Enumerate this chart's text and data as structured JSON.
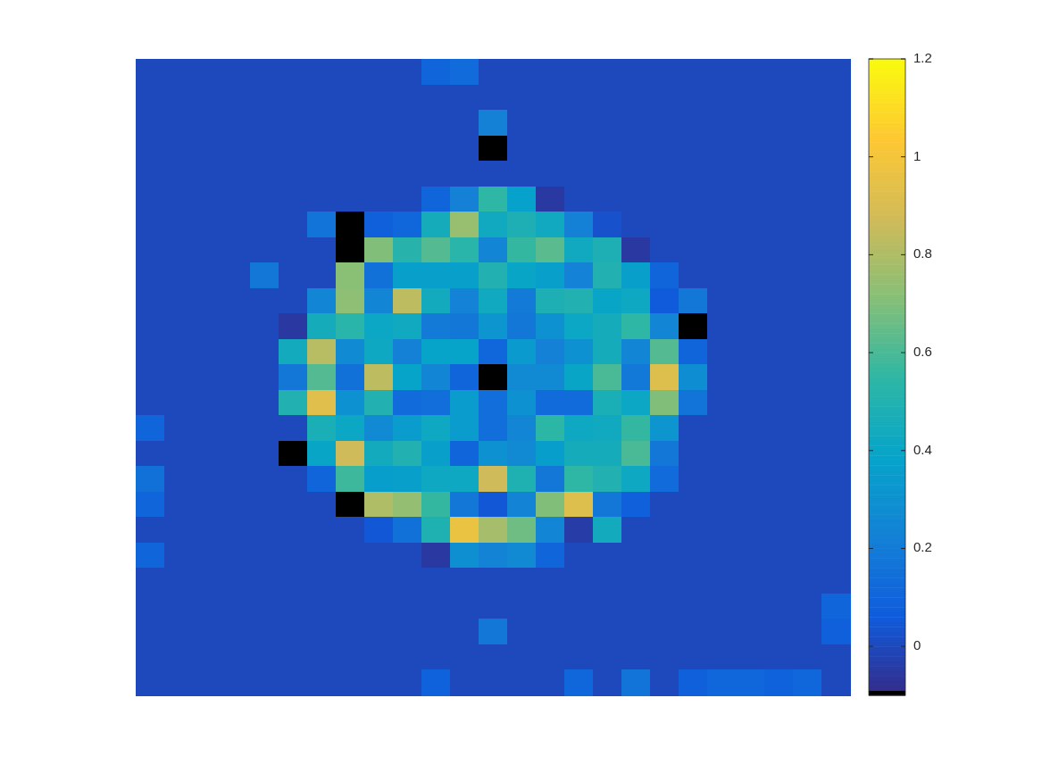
{
  "chart_data": {
    "type": "heatmap",
    "categories": [
      null,
      null,
      null,
      null,
      null,
      null,
      null,
      null,
      null,
      null,
      null,
      null,
      null,
      null,
      null,
      null,
      null,
      null,
      null,
      null,
      null,
      null,
      null,
      null,
      null
    ],
    "y_categories": [
      null,
      null,
      null,
      null,
      null,
      null,
      null,
      null,
      null,
      null,
      null,
      null,
      null,
      null,
      null,
      null,
      null,
      null,
      null,
      null,
      null,
      null,
      null,
      null,
      null
    ],
    "clim": [
      -0.1,
      1.2
    ],
    "cticks": [
      0,
      0.2,
      0.4,
      0.6,
      0.8,
      1,
      1.2
    ],
    "cells": [
      [
        0,
        0,
        0,
        0,
        0,
        0,
        0,
        0,
        0,
        0,
        0.1,
        0.13,
        0,
        0,
        0,
        0,
        0,
        0,
        0,
        0,
        0,
        0,
        0,
        0,
        0
      ],
      [
        0,
        0,
        0,
        0,
        0,
        0,
        0,
        0,
        0,
        0,
        0,
        0,
        0,
        0,
        0,
        0,
        0,
        0,
        0,
        0,
        0,
        0,
        0,
        0,
        0
      ],
      [
        0,
        0,
        0,
        0,
        0,
        0,
        0,
        0,
        0,
        0,
        0,
        0,
        0.22,
        0,
        0,
        0,
        0,
        0,
        0,
        0,
        0,
        0,
        0,
        0,
        0
      ],
      [
        0,
        0,
        0,
        0,
        0,
        0,
        0,
        0,
        0,
        0,
        0,
        0,
        -0.1,
        0,
        0,
        0,
        0,
        0,
        0,
        0,
        0,
        0,
        0,
        0,
        0
      ],
      [
        0,
        0,
        0,
        0,
        0,
        0,
        0,
        0,
        0,
        0,
        0,
        0,
        0,
        0,
        0,
        0,
        0,
        0,
        0,
        0,
        0,
        0,
        0,
        0,
        0
      ],
      [
        0,
        0,
        0,
        0,
        0,
        0,
        0,
        0,
        0,
        0,
        0.1,
        0.22,
        0.55,
        0.38,
        -0.05,
        0,
        0,
        0,
        0,
        0,
        0,
        0,
        0,
        0,
        0
      ],
      [
        0,
        0,
        0,
        0,
        0,
        0,
        0.17,
        -0.1,
        0.08,
        0.11,
        0.45,
        0.75,
        0.43,
        0.48,
        0.43,
        0.22,
        0.03,
        0,
        0,
        0,
        0,
        0,
        0,
        0,
        0
      ],
      [
        0,
        0,
        0,
        0,
        0,
        0,
        0,
        -0.1,
        0.7,
        0.52,
        0.62,
        0.53,
        0.25,
        0.56,
        0.63,
        0.43,
        0.48,
        -0.05,
        0,
        0,
        0,
        0,
        0,
        0,
        0
      ],
      [
        0,
        0,
        0,
        0,
        0.18,
        0,
        0,
        0.72,
        0.15,
        0.37,
        0.37,
        0.37,
        0.5,
        0.4,
        0.37,
        0.23,
        0.5,
        0.37,
        0.1,
        0,
        0,
        0,
        0,
        0,
        0
      ],
      [
        0,
        0,
        0,
        0,
        0,
        0,
        0.25,
        0.73,
        0.25,
        0.83,
        0.44,
        0.23,
        0.43,
        0.2,
        0.48,
        0.5,
        0.4,
        0.42,
        0.06,
        0.18,
        0,
        0,
        0,
        0,
        0
      ],
      [
        0,
        0,
        0,
        0,
        0,
        -0.05,
        0.45,
        0.53,
        0.41,
        0.43,
        0.2,
        0.18,
        0.32,
        0.18,
        0.3,
        0.41,
        0.45,
        0.55,
        0.25,
        -0.1,
        0,
        0,
        0,
        0,
        0
      ],
      [
        0,
        0,
        0,
        0,
        0,
        0.44,
        0.82,
        0.27,
        0.42,
        0.22,
        0.39,
        0.39,
        0.11,
        0.34,
        0.22,
        0.3,
        0.45,
        0.25,
        0.62,
        0.1,
        0,
        0,
        0,
        0,
        0
      ],
      [
        0,
        0,
        0,
        0,
        0,
        0.18,
        0.62,
        0.15,
        0.83,
        0.39,
        0.25,
        0.1,
        -0.1,
        0.26,
        0.26,
        0.4,
        0.6,
        0.19,
        0.92,
        0.28,
        0,
        0,
        0,
        0,
        0
      ],
      [
        0,
        0,
        0,
        0,
        0,
        0.5,
        0.93,
        0.3,
        0.5,
        0.13,
        0.14,
        0.35,
        0.14,
        0.3,
        0.13,
        0.13,
        0.47,
        0.41,
        0.7,
        0.17,
        0,
        0,
        0,
        0,
        0
      ],
      [
        0.1,
        0,
        0,
        0,
        0,
        0,
        0.47,
        0.41,
        0.26,
        0.35,
        0.42,
        0.35,
        0.14,
        0.25,
        0.54,
        0.42,
        0.43,
        0.56,
        0.32,
        0,
        0,
        0,
        0,
        0,
        0
      ],
      [
        0,
        0,
        0,
        0,
        0,
        -0.1,
        0.4,
        0.87,
        0.44,
        0.5,
        0.37,
        0.1,
        0.3,
        0.26,
        0.36,
        0.45,
        0.45,
        0.6,
        0.18,
        0,
        0,
        0,
        0,
        0,
        0
      ],
      [
        0.15,
        0,
        0,
        0,
        0,
        0,
        0.1,
        0.58,
        0.36,
        0.37,
        0.42,
        0.42,
        0.87,
        0.49,
        0.18,
        0.55,
        0.5,
        0.42,
        0.13,
        0,
        0,
        0,
        0,
        0,
        0
      ],
      [
        0.1,
        0,
        0,
        0,
        0,
        0,
        0,
        -0.1,
        0.8,
        0.74,
        0.56,
        0.18,
        0.05,
        0.24,
        0.7,
        0.92,
        0.18,
        0.08,
        0,
        0,
        0,
        0,
        0,
        0,
        0
      ],
      [
        0,
        0,
        0,
        0,
        0,
        0,
        0,
        0,
        0.05,
        0.15,
        0.49,
        0.97,
        0.78,
        0.67,
        0.25,
        -0.04,
        0.44,
        0,
        0,
        0,
        0,
        0,
        0,
        0,
        0
      ],
      [
        0.1,
        0,
        0,
        0,
        0,
        0,
        0,
        0,
        0,
        0,
        -0.05,
        0.29,
        0.24,
        0.26,
        0.1,
        0,
        0,
        0,
        0,
        0,
        0,
        0,
        0,
        0,
        0
      ],
      [
        0,
        0,
        0,
        0,
        0,
        0,
        0,
        0,
        0,
        0,
        0,
        0,
        0,
        0,
        0,
        0,
        0,
        0,
        0,
        0,
        0,
        0,
        0,
        0,
        0
      ],
      [
        0,
        0,
        0,
        0,
        0,
        0,
        0,
        0,
        0,
        0,
        0,
        0,
        0,
        0,
        0,
        0,
        0,
        0,
        0,
        0,
        0,
        0,
        0,
        0,
        0.1
      ],
      [
        0,
        0,
        0,
        0,
        0,
        0,
        0,
        0,
        0,
        0,
        0,
        0,
        0.18,
        0,
        0,
        0,
        0,
        0,
        0,
        0,
        0,
        0,
        0,
        0,
        0.08
      ],
      [
        0,
        0,
        0,
        0,
        0,
        0,
        0,
        0,
        0,
        0,
        0,
        0,
        0,
        0,
        0,
        0,
        0,
        0,
        0,
        0,
        0,
        0,
        0,
        0,
        0
      ],
      [
        0,
        0,
        0,
        0,
        0,
        0,
        0,
        0,
        0,
        0,
        0.09,
        0,
        0,
        0,
        0,
        0.11,
        0,
        0.17,
        0,
        0.08,
        0.11,
        0.11,
        0.09,
        0.11,
        0
      ]
    ]
  }
}
